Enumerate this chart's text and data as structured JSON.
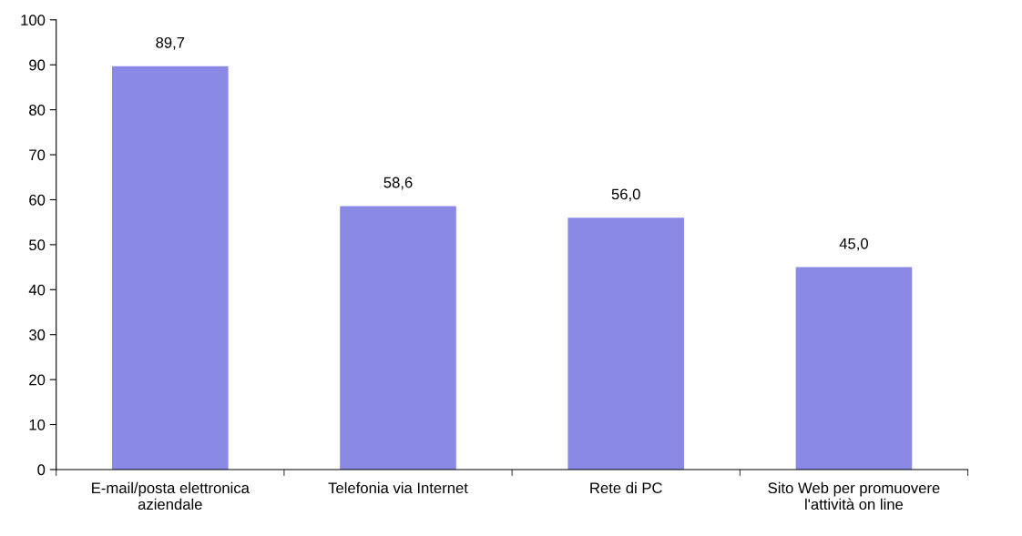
{
  "chart_data": {
    "type": "bar",
    "categories": [
      "E-mail/posta elettronica\naziendale",
      "Telefonia via Internet",
      "Rete di PC",
      "Sito Web per promuovere\nl'attività on line"
    ],
    "values": [
      89.7,
      58.6,
      56.0,
      45.0
    ],
    "value_labels": [
      "89,7",
      "58,6",
      "56,0",
      "45,0"
    ],
    "color": "#8a8ae6",
    "ylim": [
      0,
      100
    ],
    "yticks": [
      0,
      10,
      20,
      30,
      40,
      50,
      60,
      70,
      80,
      90,
      100
    ],
    "grid": false,
    "legend": false
  }
}
